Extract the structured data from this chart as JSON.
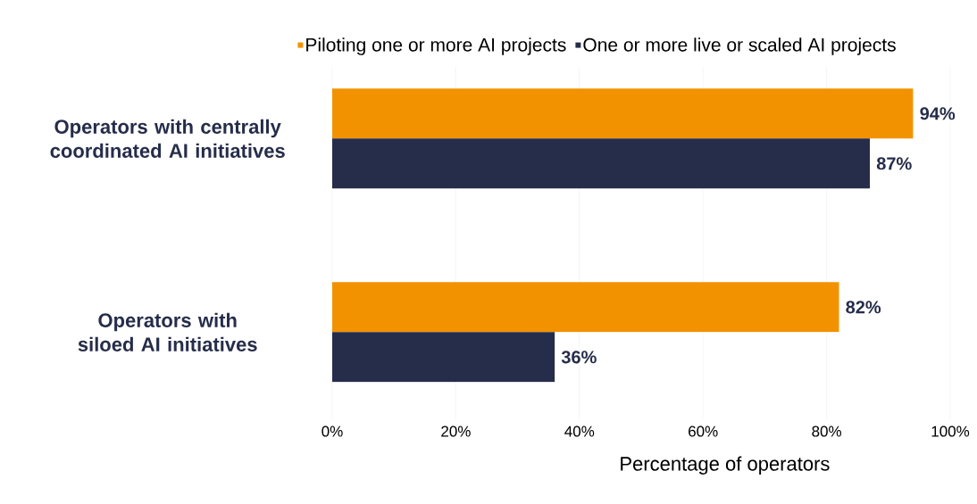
{
  "chart_data": {
    "type": "bar",
    "orientation": "horizontal",
    "xlabel": "Percentage of operators",
    "categories": [
      "Operators with centrally coordinated AI initiatives",
      "Operators with siloed AI initiatives"
    ],
    "series": [
      {
        "name": "Piloting one or more AI projects",
        "color": "#f39200",
        "values": [
          94,
          82
        ],
        "value_labels": [
          "94%",
          "82%"
        ]
      },
      {
        "name": "One or more live or scaled AI projects",
        "color": "#262d4a",
        "values": [
          87,
          36
        ],
        "value_labels": [
          "87%",
          "36%"
        ]
      }
    ],
    "xlim": [
      0,
      100
    ],
    "xticks": [
      {
        "value": 0,
        "label": "0%"
      },
      {
        "value": 20,
        "label": "20%"
      },
      {
        "value": 40,
        "label": "40%"
      },
      {
        "value": 60,
        "label": "60%"
      },
      {
        "value": 80,
        "label": "80%"
      },
      {
        "value": 100,
        "label": "100%"
      }
    ],
    "grid": "x",
    "legend": "top"
  }
}
